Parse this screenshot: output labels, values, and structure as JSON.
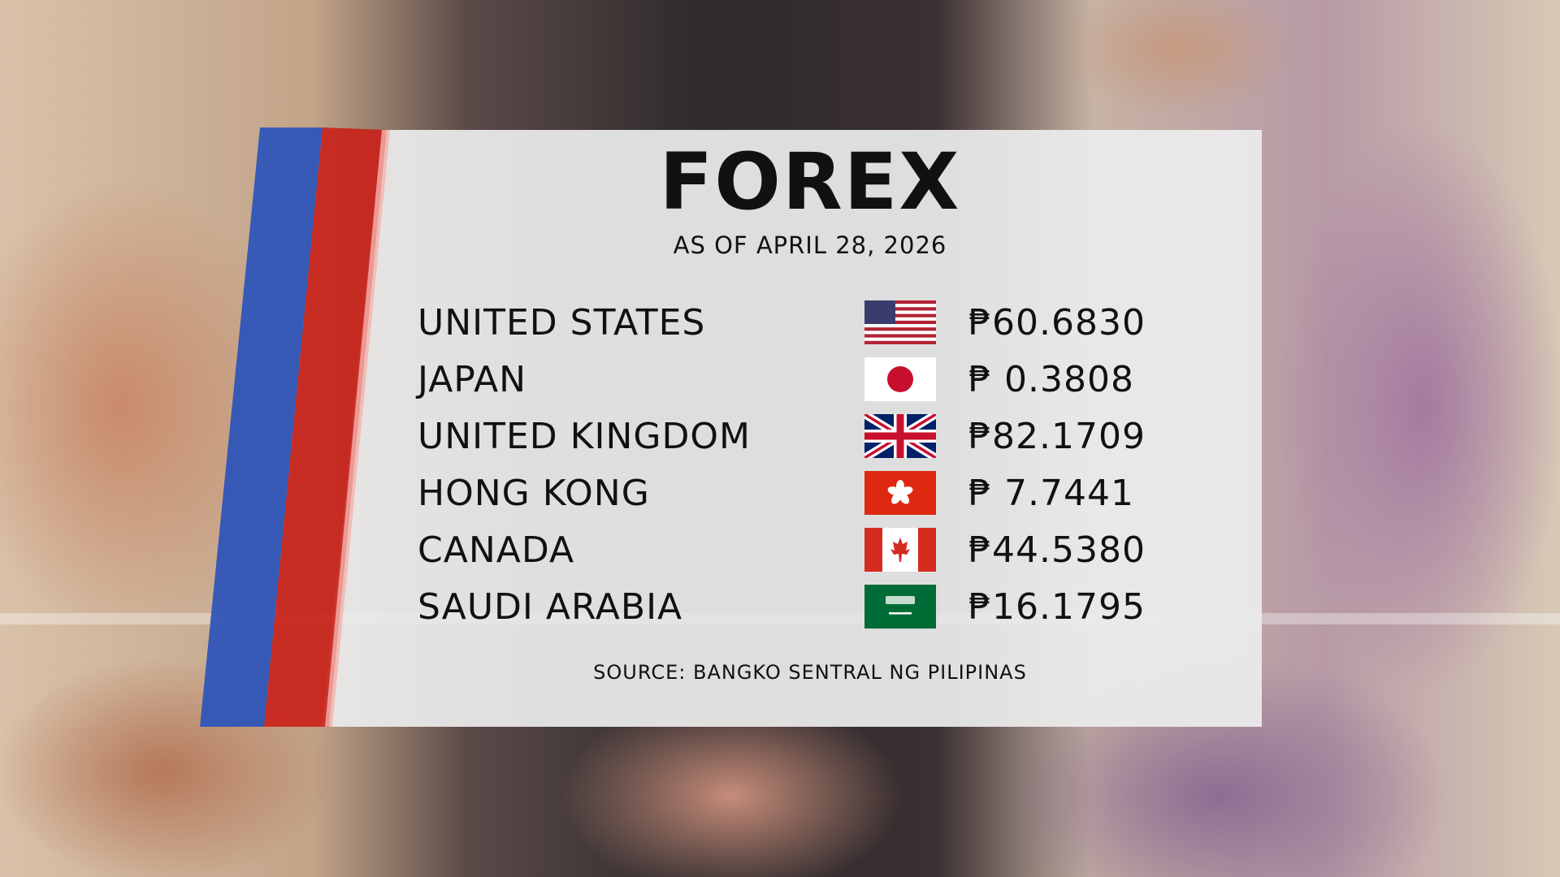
{
  "title": "FOREX",
  "date": "AS OF APRIL 28, 2026",
  "rows": [
    {
      "country": "UNITED STATES",
      "flag": "us-flag-icon",
      "value": "₱60.6830"
    },
    {
      "country": "JAPAN",
      "flag": "japan-flag-icon",
      "value": "₱ 0.3808"
    },
    {
      "country": "UNITED KINGDOM",
      "flag": "uk-flag-icon",
      "value": "₱82.1709"
    },
    {
      "country": "HONG KONG",
      "flag": "hong-kong-flag-icon",
      "value": "₱ 7.7441"
    },
    {
      "country": "CANADA",
      "flag": "canada-flag-icon",
      "value": "₱44.5380"
    },
    {
      "country": "SAUDI ARABIA",
      "flag": "saudi-arabia-flag-icon",
      "value": "₱16.1795"
    }
  ],
  "source": "SOURCE: BANGKO SENTRAL NG PILIPINAS",
  "colors": {
    "blue_stripe": "#2f55b8",
    "red_stripe": "#c8231c",
    "panel": "#ececec"
  }
}
